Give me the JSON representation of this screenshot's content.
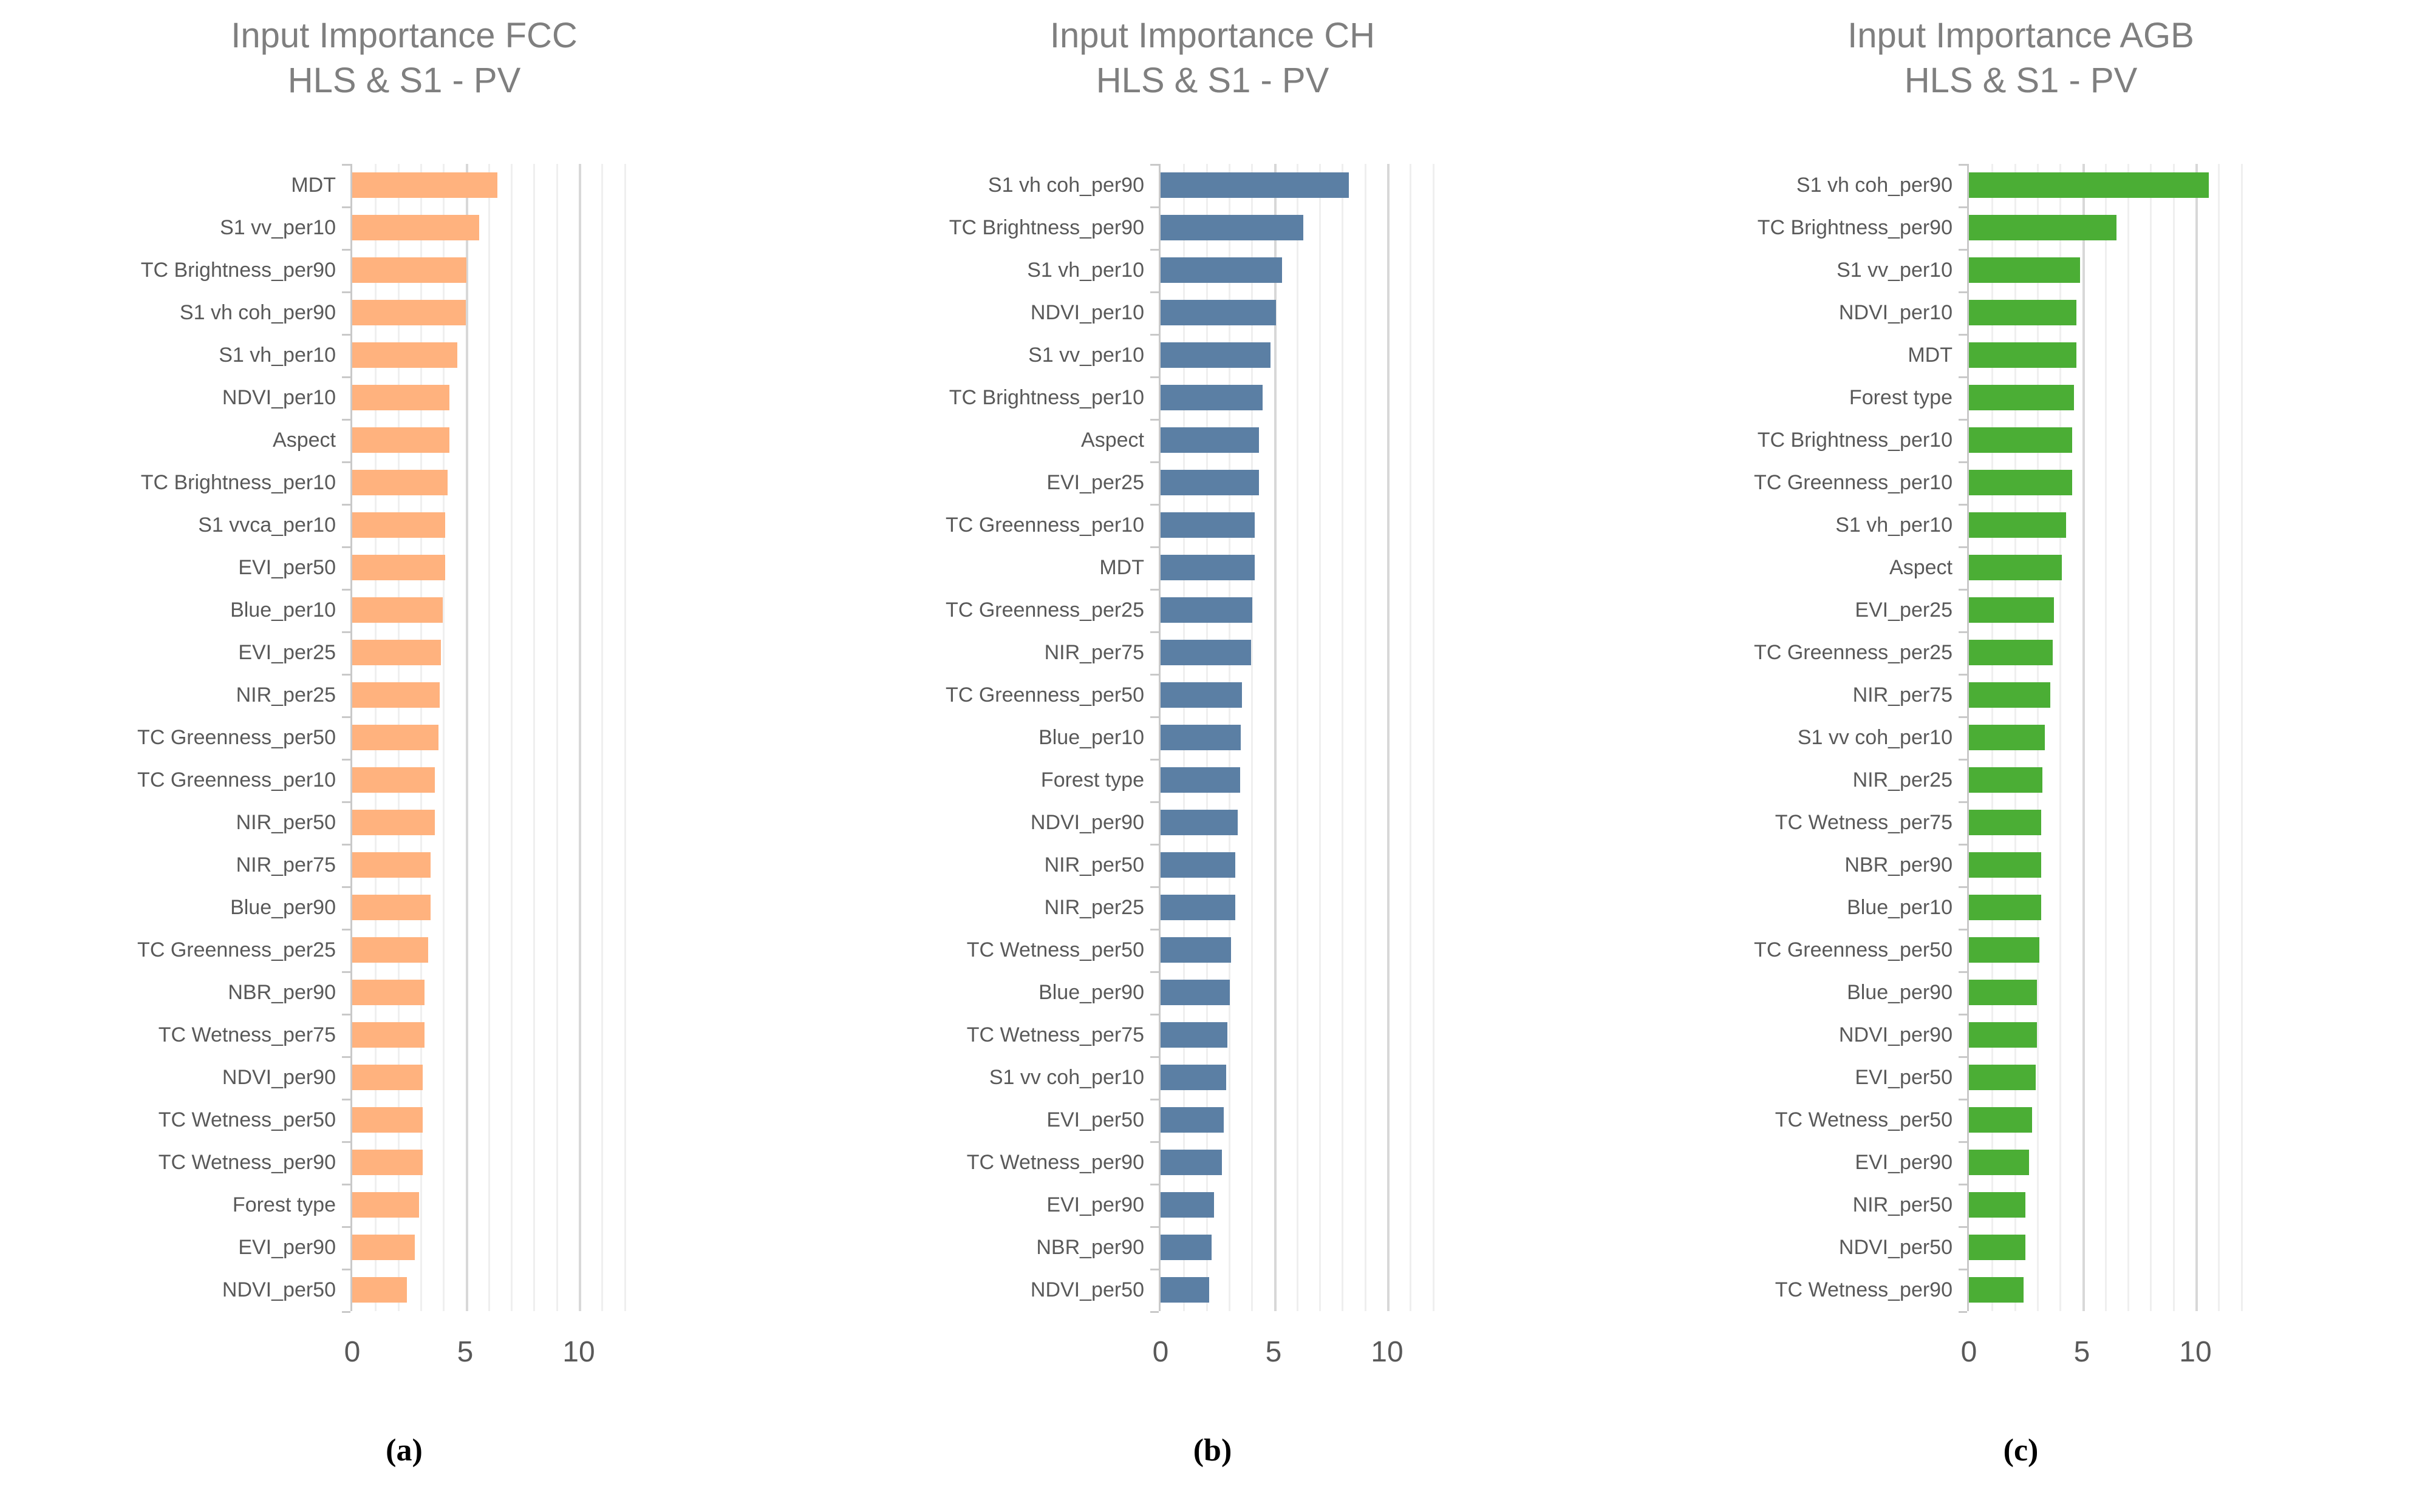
{
  "chart_data": [
    {
      "type": "bar",
      "orientation": "horizontal",
      "title": "Input Importance FCC",
      "subtitle": "HLS & S1 - PV",
      "caption": "(a)",
      "color": "#FFB27E",
      "xlim": [
        0,
        13
      ],
      "xticks": [
        0,
        5,
        10
      ],
      "gridlines": 12,
      "legend": "none",
      "categories": [
        "MDT",
        "S1 vv_per10",
        "TC Brightness_per90",
        "S1 vh coh_per90",
        "S1 vh_per10",
        "NDVI_per10",
        "Aspect",
        "TC Brightness_per10",
        "S1 vvca_per10",
        "EVI_per50",
        "Blue_per10",
        "EVI_per25",
        "NIR_per25",
        "TC Greenness_per50",
        "TC Greenness_per10",
        "NIR_per50",
        "NIR_per75",
        "Blue_per90",
        "TC Greenness_per25",
        "NBR_per90",
        "TC Wetness_per75",
        "NDVI_per90",
        "TC Wetness_per50",
        "TC Wetness_per90",
        "Forest type",
        "EVI_per90",
        "NDVI_per50"
      ],
      "values": [
        6.4,
        5.6,
        5.05,
        5.0,
        4.65,
        4.3,
        4.3,
        4.2,
        4.1,
        4.1,
        4.0,
        3.9,
        3.85,
        3.8,
        3.65,
        3.65,
        3.45,
        3.45,
        3.35,
        3.2,
        3.2,
        3.1,
        3.1,
        3.1,
        2.95,
        2.75,
        2.4
      ]
    },
    {
      "type": "bar",
      "orientation": "horizontal",
      "title": "Input Importance CH",
      "subtitle": "HLS & S1 - PV",
      "caption": "(b)",
      "color": "#5B7FA4",
      "xlim": [
        0,
        13
      ],
      "xticks": [
        0,
        5,
        10
      ],
      "gridlines": 12,
      "legend": "none",
      "categories": [
        "S1 vh coh_per90",
        "TC Brightness_per90",
        "S1 vh_per10",
        "NDVI_per10",
        "S1 vv_per10",
        "TC Brightness_per10",
        "Aspect",
        "EVI_per25",
        "TC Greenness_per10",
        "MDT",
        "TC Greenness_per25",
        "NIR_per75",
        "TC Greenness_per50",
        "Blue_per10",
        "Forest type",
        "NDVI_per90",
        "NIR_per50",
        "NIR_per25",
        "TC Wetness_per50",
        "Blue_per90",
        "TC Wetness_per75",
        "S1 vv coh_per10",
        "EVI_per50",
        "TC Wetness_per90",
        "EVI_per90",
        "NBR_per90",
        "NDVI_per50"
      ],
      "values": [
        8.3,
        6.3,
        5.35,
        5.1,
        4.85,
        4.5,
        4.35,
        4.35,
        4.15,
        4.15,
        4.05,
        4.0,
        3.6,
        3.55,
        3.5,
        3.4,
        3.3,
        3.3,
        3.1,
        3.05,
        2.95,
        2.9,
        2.8,
        2.7,
        2.35,
        2.25,
        2.15
      ]
    },
    {
      "type": "bar",
      "orientation": "horizontal",
      "title": "Input Importance AGB",
      "subtitle": "HLS & S1 - PV",
      "caption": "(c)",
      "color": "#4BAE35",
      "xlim": [
        0,
        13
      ],
      "xticks": [
        0,
        5,
        10
      ],
      "gridlines": 12,
      "legend": "none",
      "categories": [
        "S1 vh coh_per90",
        "TC Brightness_per90",
        "S1 vv_per10",
        "NDVI_per10",
        "MDT",
        "Forest type",
        "TC Brightness_per10",
        "TC Greenness_per10",
        "S1 vh_per10",
        "Aspect",
        "EVI_per25",
        "TC Greenness_per25",
        "NIR_per75",
        "S1 vv coh_per10",
        "NIR_per25",
        "TC Wetness_per75",
        "NBR_per90",
        "Blue_per10",
        "TC Greenness_per50",
        "Blue_per90",
        "NDVI_per90",
        "EVI_per50",
        "TC Wetness_per50",
        "EVI_per90",
        "NIR_per50",
        "NDVI_per50",
        "TC Wetness_per90"
      ],
      "values": [
        10.6,
        6.5,
        4.9,
        4.75,
        4.75,
        4.65,
        4.55,
        4.55,
        4.3,
        4.1,
        3.75,
        3.7,
        3.6,
        3.35,
        3.25,
        3.2,
        3.2,
        3.2,
        3.1,
        3.0,
        3.0,
        2.95,
        2.8,
        2.65,
        2.5,
        2.5,
        2.4
      ]
    }
  ],
  "text_colors": {
    "title_gray": "#7F7F7F",
    "label_gray": "#595959"
  }
}
